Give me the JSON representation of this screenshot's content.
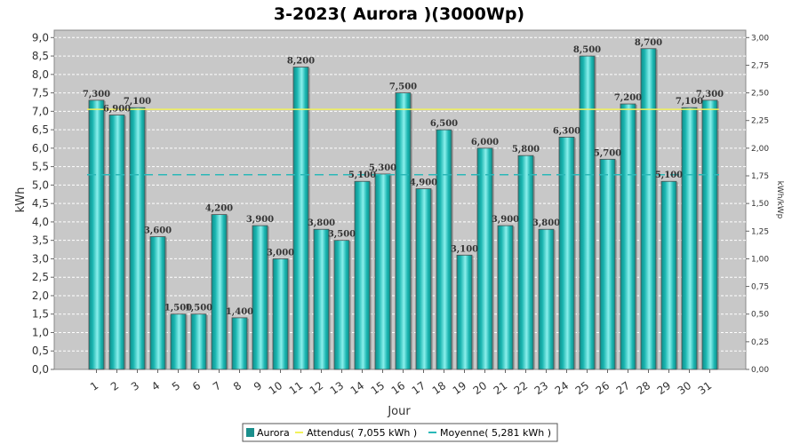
{
  "chart_data": {
    "type": "bar",
    "title": "3-2023( Aurora )(3000Wp)",
    "xlabel": "Jour",
    "ylabel": "kWh",
    "ylabel_right": "kWh/kWp",
    "ylim": [
      0,
      9.2
    ],
    "ylim_right": [
      0,
      3.0667
    ],
    "grid": true,
    "legend_placement": "bottom-center",
    "categories": [
      "1",
      "2",
      "3",
      "4",
      "5",
      "6",
      "7",
      "8",
      "9",
      "10",
      "11",
      "12",
      "13",
      "14",
      "15",
      "16",
      "17",
      "18",
      "19",
      "20",
      "21",
      "22",
      "23",
      "24",
      "25",
      "26",
      "27",
      "28",
      "29",
      "30",
      "31"
    ],
    "y_ticks": [
      "0,0",
      "0,5",
      "1,0",
      "1,5",
      "2,0",
      "2,5",
      "3,0",
      "3,5",
      "4,0",
      "4,5",
      "5,0",
      "5,5",
      "6,0",
      "6,5",
      "7,0",
      "7,5",
      "8,0",
      "8,5",
      "9,0"
    ],
    "y_ticks_right": [
      "0,00",
      "0,25",
      "0,50",
      "0,75",
      "1,00",
      "1,25",
      "1,50",
      "1,75",
      "2,00",
      "2,25",
      "2,50",
      "2,75",
      "3,00"
    ],
    "series": [
      {
        "name": "Aurora",
        "color": "#1ab5b0",
        "values": [
          7.3,
          6.9,
          7.1,
          3.6,
          1.5,
          1.5,
          4.2,
          1.4,
          3.9,
          3.0,
          8.2,
          3.8,
          3.5,
          5.1,
          5.3,
          7.5,
          4.9,
          6.5,
          3.1,
          6.0,
          3.9,
          5.8,
          3.8,
          6.3,
          8.5,
          5.7,
          7.2,
          8.7,
          5.1,
          7.1,
          7.3
        ],
        "data_labels": [
          "7,300",
          "6,900",
          "7,100",
          "3,600",
          "1,500",
          "1,500",
          "4,200",
          "1,400",
          "3,900",
          "3,000",
          "8,200",
          "3,800",
          "3,500",
          "5,100",
          "5,300",
          "7,500",
          "4,900",
          "6,500",
          "3,100",
          "6,000",
          "3,900",
          "5,800",
          "3,800",
          "6,300",
          "8,500",
          "5,700",
          "7,200",
          "8,700",
          "5,100",
          "7,100",
          "7,300"
        ]
      }
    ],
    "reference_lines": [
      {
        "name": "Attendus( 7,055 kWh )",
        "value": 7.055,
        "color": "#f2f25a",
        "style": "solid"
      },
      {
        "name": "Moyenne( 5,281 kWh )",
        "value": 5.281,
        "color": "#2ab8b8",
        "style": "dashed"
      }
    ]
  },
  "colors": {
    "plot_bg": "#c8c8c8",
    "grid": "#ffffff",
    "bar_face": "#1ab5b0",
    "bar_light": "#7ee6e2",
    "bar_edge": "#5a5a5a"
  }
}
